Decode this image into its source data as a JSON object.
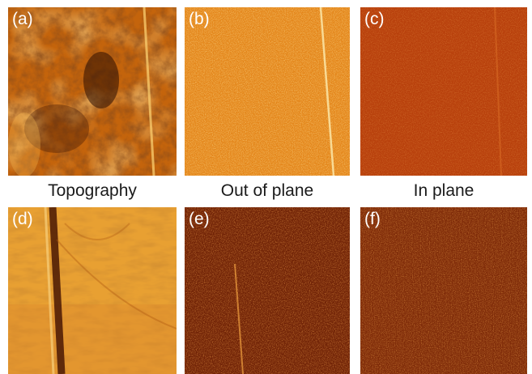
{
  "panels": [
    {
      "id": "a",
      "label": "(a)"
    },
    {
      "id": "b",
      "label": "(b)"
    },
    {
      "id": "c",
      "label": "(c)"
    },
    {
      "id": "d",
      "label": "(d)"
    },
    {
      "id": "e",
      "label": "(e)"
    },
    {
      "id": "f",
      "label": "(f)"
    }
  ],
  "captions": [
    "Topography",
    "Out of plane",
    "In plane"
  ],
  "colors": {
    "topo_base": "#c4640c",
    "topo_dark": "#3a1203",
    "topo_light": "#f2b24c",
    "oop_base": "#e68a1e",
    "ip_base": "#b8400c",
    "e_base": "#7a2608",
    "f_base": "#8a300a",
    "d_base": "#e39a2c",
    "label_text": "#ffffff"
  }
}
